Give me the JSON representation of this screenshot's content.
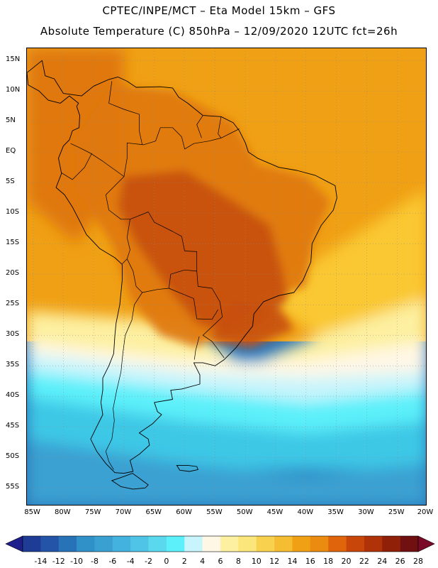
{
  "title": {
    "line1": "CPTEC/INPE/MCT –  Eta Model 15km – GFS",
    "line2": "Absolute Temperature (C) 850hPa – 12/09/2020 12UTC fct=26h"
  },
  "map": {
    "region": "South America",
    "lat_range": [
      -58,
      17
    ],
    "lon_range": [
      -86,
      -20
    ],
    "lat_ticks": [
      "15N",
      "10N",
      "5N",
      "EQ",
      "5S",
      "10S",
      "15S",
      "20S",
      "25S",
      "30S",
      "35S",
      "40S",
      "45S",
      "50S",
      "55S"
    ],
    "lat_values": [
      15,
      10,
      5,
      0,
      -5,
      -10,
      -15,
      -20,
      -25,
      -30,
      -35,
      -40,
      -45,
      -50,
      -55
    ],
    "lon_ticks": [
      "85W",
      "80W",
      "75W",
      "70W",
      "65W",
      "60W",
      "55W",
      "50W",
      "45W",
      "40W",
      "35W",
      "30W",
      "25W",
      "20W"
    ],
    "lon_values": [
      -85,
      -80,
      -75,
      -70,
      -65,
      -60,
      -55,
      -50,
      -45,
      -40,
      -35,
      -30,
      -25,
      -20
    ],
    "colors": {
      "warm_core": "#c8500a",
      "warm_high": "#e0780f",
      "warm_mid": "#f0a014",
      "warm_low": "#fac832",
      "pale_yellow": "#fdf0a0",
      "cream": "#fff7e6",
      "pale_cyan": "#c8f4fc",
      "cyan": "#5cf0fa",
      "sky": "#3cc8e6",
      "steel": "#3aa0d2",
      "deep": "#2872b8",
      "coast": "#000000"
    }
  },
  "colorbar": {
    "labels": [
      "-14",
      "-12",
      "-10",
      "-8",
      "-6",
      "-4",
      "-2",
      "0",
      "2",
      "4",
      "6",
      "8",
      "10",
      "12",
      "14",
      "16",
      "18",
      "20",
      "22",
      "24",
      "26",
      "28"
    ],
    "colors": [
      "#1e3c96",
      "#2354a8",
      "#2872b8",
      "#3090c8",
      "#3aa0d2",
      "#44b2de",
      "#50c4e6",
      "#5ad8ee",
      "#5cf0fa",
      "#c8f4fc",
      "#fff7e6",
      "#fdf0a0",
      "#fae67a",
      "#f8d24e",
      "#f5be32",
      "#f0a014",
      "#eb8c10",
      "#e0640c",
      "#c8460a",
      "#b03208",
      "#902008",
      "#701010"
    ],
    "under_color": "#1e1e8c",
    "over_color": "#7a0a28"
  }
}
